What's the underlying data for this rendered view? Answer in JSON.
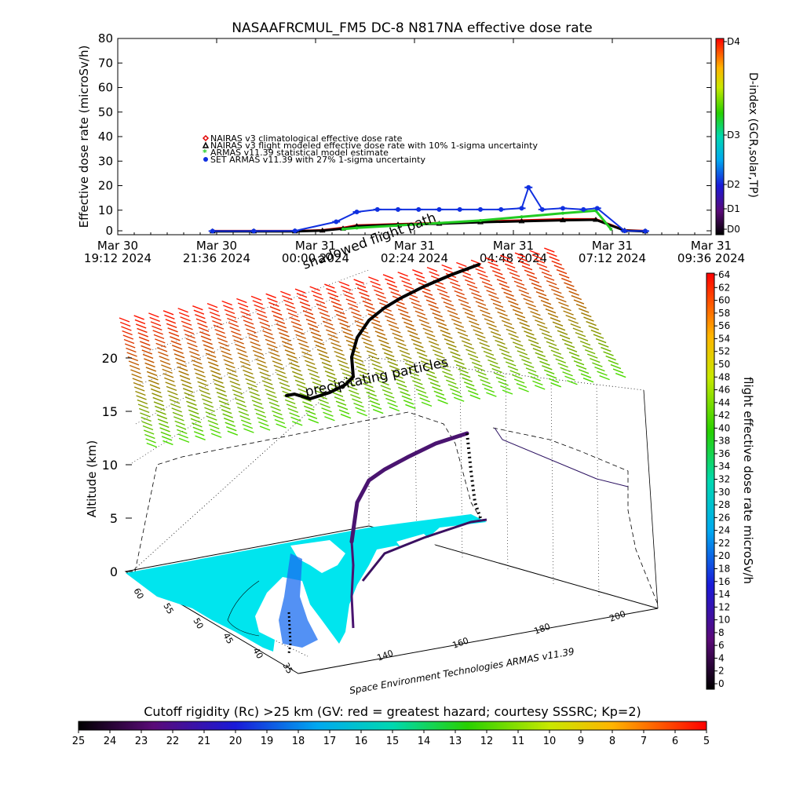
{
  "chart_data": [
    {
      "type": "scatter",
      "title": "NASAAFRCMUL_FM5 DC-8    N817NA effective dose rate",
      "ylabel": "Effective dose rate (microSv/h)",
      "ylim": [
        0,
        80
      ],
      "yticks": [
        "0",
        "10",
        "20",
        "30",
        "40",
        "50",
        "60",
        "70",
        "80"
      ],
      "xlim": [
        "2024-03-30 19:12",
        "2024-03-31 09:36"
      ],
      "xticks": [
        {
          "t": "2024-03-30 19:12",
          "line1": "Mar 30",
          "line2": "19:12 2024"
        },
        {
          "t": "2024-03-30 21:36",
          "line1": "Mar 30",
          "line2": "21:36 2024"
        },
        {
          "t": "2024-03-31 00:00",
          "line1": "Mar 31",
          "line2": "00:00 2024"
        },
        {
          "t": "2024-03-31 02:24",
          "line1": "Mar 31",
          "line2": "02:24 2024"
        },
        {
          "t": "2024-03-31 04:48",
          "line1": "Mar 31",
          "line2": "04:48 2024"
        },
        {
          "t": "2024-03-31 07:12",
          "line1": "Mar 31",
          "line2": "07:12 2024"
        },
        {
          "t": "2024-03-31 09:36",
          "line1": "Mar 31",
          "line2": "09:36 2024"
        }
      ],
      "legend": [
        {
          "label": "NAIRAS v3 climatological effective dose rate",
          "color": "#e00000",
          "marker": "diamond"
        },
        {
          "label": "NAIRAS v3 flight modeled effective dose rate with 10% 1-sigma uncertainty",
          "color": "#000000",
          "marker": "triangle"
        },
        {
          "label": "ARMAS v11.39 statistical model estimate",
          "color": "#22cc22",
          "marker": "star"
        },
        {
          "label": "SET ARMAS v11.39 with 27% 1-sigma uncertainty",
          "color": "#1030e0",
          "marker": "circle"
        }
      ],
      "legend_position": "upper-left",
      "series": [
        {
          "name": "NAIRAS v3 climatological effective dose rate",
          "x": [
            "2024-03-30 21:30",
            "2024-03-30 22:30",
            "2024-03-30 23:30",
            "2024-03-31 00:10",
            "2024-03-31 00:40",
            "2024-03-31 01:00",
            "2024-03-31 02:00",
            "2024-03-31 03:00",
            "2024-03-31 04:00",
            "2024-03-31 05:00",
            "2024-03-31 06:00",
            "2024-03-31 06:48",
            "2024-03-31 07:30",
            "2024-03-31 08:00"
          ],
          "y": [
            0.2,
            0.2,
            0.2,
            0.5,
            1.5,
            2.5,
            3.0,
            3.5,
            4.0,
            4.5,
            5.0,
            5.0,
            0.5,
            0.2
          ]
        },
        {
          "name": "NAIRAS v3 flight modeled effective dose rate with 10% 1-sigma uncertainty",
          "x": [
            "2024-03-30 21:30",
            "2024-03-30 22:30",
            "2024-03-30 23:30",
            "2024-03-31 00:10",
            "2024-03-31 00:40",
            "2024-03-31 01:00",
            "2024-03-31 02:00",
            "2024-03-31 03:00",
            "2024-03-31 04:00",
            "2024-03-31 05:00",
            "2024-03-31 06:00",
            "2024-03-31 06:48",
            "2024-03-31 07:30",
            "2024-03-31 08:00"
          ],
          "y": [
            0.1,
            0.1,
            0.1,
            0.4,
            1.2,
            2.2,
            2.8,
            3.2,
            3.8,
            4.2,
            4.6,
            4.8,
            0.4,
            0.1
          ]
        },
        {
          "name": "ARMAS v11.39 statistical model estimate",
          "x": [
            "2024-03-31 00:40",
            "2024-03-31 01:00",
            "2024-03-31 02:00",
            "2024-03-31 03:00",
            "2024-03-31 04:00",
            "2024-03-31 05:00",
            "2024-03-31 06:00",
            "2024-03-31 06:48",
            "2024-03-31 07:10"
          ],
          "y": [
            1.0,
            1.5,
            2.5,
            3.5,
            4.5,
            6.0,
            7.5,
            8.5,
            1.0
          ]
        },
        {
          "name": "SET ARMAS v11.39 with 27% 1-sigma uncertainty",
          "x": [
            "2024-03-30 21:30",
            "2024-03-30 22:30",
            "2024-03-30 23:30",
            "2024-03-31 00:30",
            "2024-03-31 01:00",
            "2024-03-31 01:30",
            "2024-03-31 02:00",
            "2024-03-31 02:30",
            "2024-03-31 03:00",
            "2024-03-31 03:30",
            "2024-03-31 04:00",
            "2024-03-31 04:30",
            "2024-03-31 05:00",
            "2024-03-31 05:10",
            "2024-03-31 05:30",
            "2024-03-31 06:00",
            "2024-03-31 06:30",
            "2024-03-31 06:50",
            "2024-03-31 07:30",
            "2024-03-31 08:00"
          ],
          "y": [
            0.2,
            0.2,
            0.3,
            4.0,
            8.0,
            9.0,
            9.0,
            9.0,
            9.0,
            9.0,
            9.0,
            9.0,
            9.5,
            18.0,
            9.0,
            9.5,
            9.0,
            9.5,
            0.3,
            0.2
          ]
        }
      ]
    },
    {
      "type": "heatmap",
      "name": "D-index colorbar",
      "label": "D-index (GCR,solar,TP)",
      "ticks": [
        "D0",
        "D1",
        "D2",
        "D3",
        "D4"
      ]
    },
    {
      "type": "scatter",
      "name": "3D flight path",
      "zlabel": "Altitude (km)",
      "zlim": [
        0,
        20
      ],
      "zticks": [
        "0",
        "5",
        "10",
        "15",
        "20"
      ],
      "lat_ticks": [
        "60",
        "55",
        "50",
        "45",
        "40",
        "35"
      ],
      "lon_ticks": [
        "140",
        "160",
        "180",
        "200"
      ],
      "annotations": [
        "shadowed flight path",
        "precipitating particles"
      ],
      "credit": "Space Environment Technologies ARMAS v11.39"
    },
    {
      "type": "heatmap",
      "name": "flight dose colorbar",
      "label": "flight effective dose rate microSv/h",
      "ticks": [
        "0",
        "2",
        "4",
        "6",
        "8",
        "10",
        "12",
        "14",
        "16",
        "18",
        "20",
        "22",
        "24",
        "26",
        "28",
        "30",
        "32",
        "34",
        "36",
        "38",
        "40",
        "42",
        "44",
        "46",
        "48",
        "50",
        "52",
        "54",
        "56",
        "58",
        "60",
        "62",
        "64"
      ]
    },
    {
      "type": "heatmap",
      "name": "cutoff rigidity colorbar",
      "label": "Cutoff rigidity (Rc) >25 km (GV: red = greatest hazard; courtesy SSSRC; Kp=2)",
      "ticks": [
        "25",
        "24",
        "23",
        "22",
        "21",
        "20",
        "19",
        "18",
        "17",
        "16",
        "15",
        "14",
        "13",
        "12",
        "11",
        "10",
        "9",
        "8",
        "7",
        "6",
        "5"
      ]
    }
  ]
}
